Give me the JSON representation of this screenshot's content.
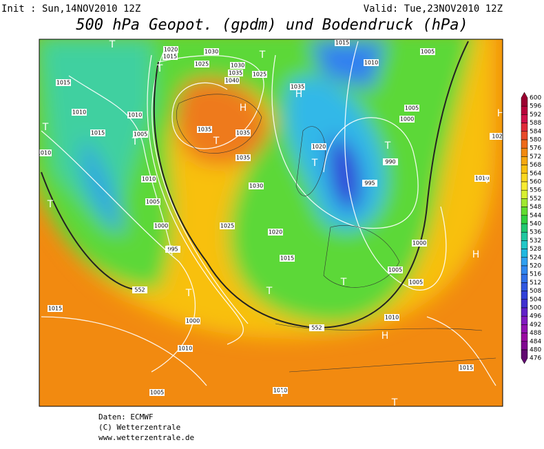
{
  "header": {
    "init": "Init : Sun,14NOV2010 12Z",
    "valid": "Valid: Tue,23NOV2010 12Z",
    "title": "500 hPa Geopot. (gpdm) und Bodendruck (hPa)"
  },
  "legend": {
    "levels": [
      600,
      596,
      592,
      588,
      584,
      580,
      576,
      572,
      568,
      564,
      560,
      556,
      552,
      548,
      544,
      540,
      536,
      532,
      528,
      524,
      520,
      516,
      512,
      508,
      504,
      500,
      496,
      492,
      488,
      484,
      480,
      476
    ],
    "colors": [
      "#9a0030",
      "#b8003a",
      "#d0104a",
      "#e02a3a",
      "#e84a2a",
      "#ee6a1a",
      "#f28a10",
      "#f6a810",
      "#f8c010",
      "#fad820",
      "#f8ec30",
      "#d8f030",
      "#a0e830",
      "#60dc30",
      "#30d040",
      "#20c870",
      "#20c8a0",
      "#20c8c8",
      "#20b8e0",
      "#30a0f0",
      "#3088f0",
      "#3070e8",
      "#3058e0",
      "#3040d8",
      "#4030d0",
      "#6020c8",
      "#8018c0",
      "#9010b0",
      "#9808a0",
      "#800890",
      "#600870"
    ]
  },
  "isobars": [
    "1020",
    "1015",
    "1030",
    "1025",
    "1030",
    "1035",
    "1040",
    "1025",
    "1035",
    "1015",
    "1010",
    "1010",
    "1005",
    "1015",
    "1035",
    "1035",
    "1020",
    "1035",
    "1030",
    "1010",
    "1005",
    "1000",
    "995",
    "1025",
    "1020",
    "1015",
    "1000",
    "1005",
    "1000",
    "990",
    "995",
    "1010",
    "1015",
    "1005",
    "1005",
    "1005",
    "1010",
    "1000",
    "1005",
    "1010",
    "1010",
    "1015",
    "1015",
    "552",
    "552",
    "1010",
    "102",
    "1010"
  ],
  "centers": [
    "T",
    "T",
    "T",
    "H",
    "H",
    "T",
    "T",
    "T",
    "T",
    "T",
    "T",
    "T",
    "T",
    "T",
    "T",
    "H",
    "H",
    "H",
    "T",
    "T",
    "T"
  ],
  "footer": [
    "Daten: ECMWF",
    "(C) Wetterzentrale",
    "www.wetterzentrale.de"
  ]
}
